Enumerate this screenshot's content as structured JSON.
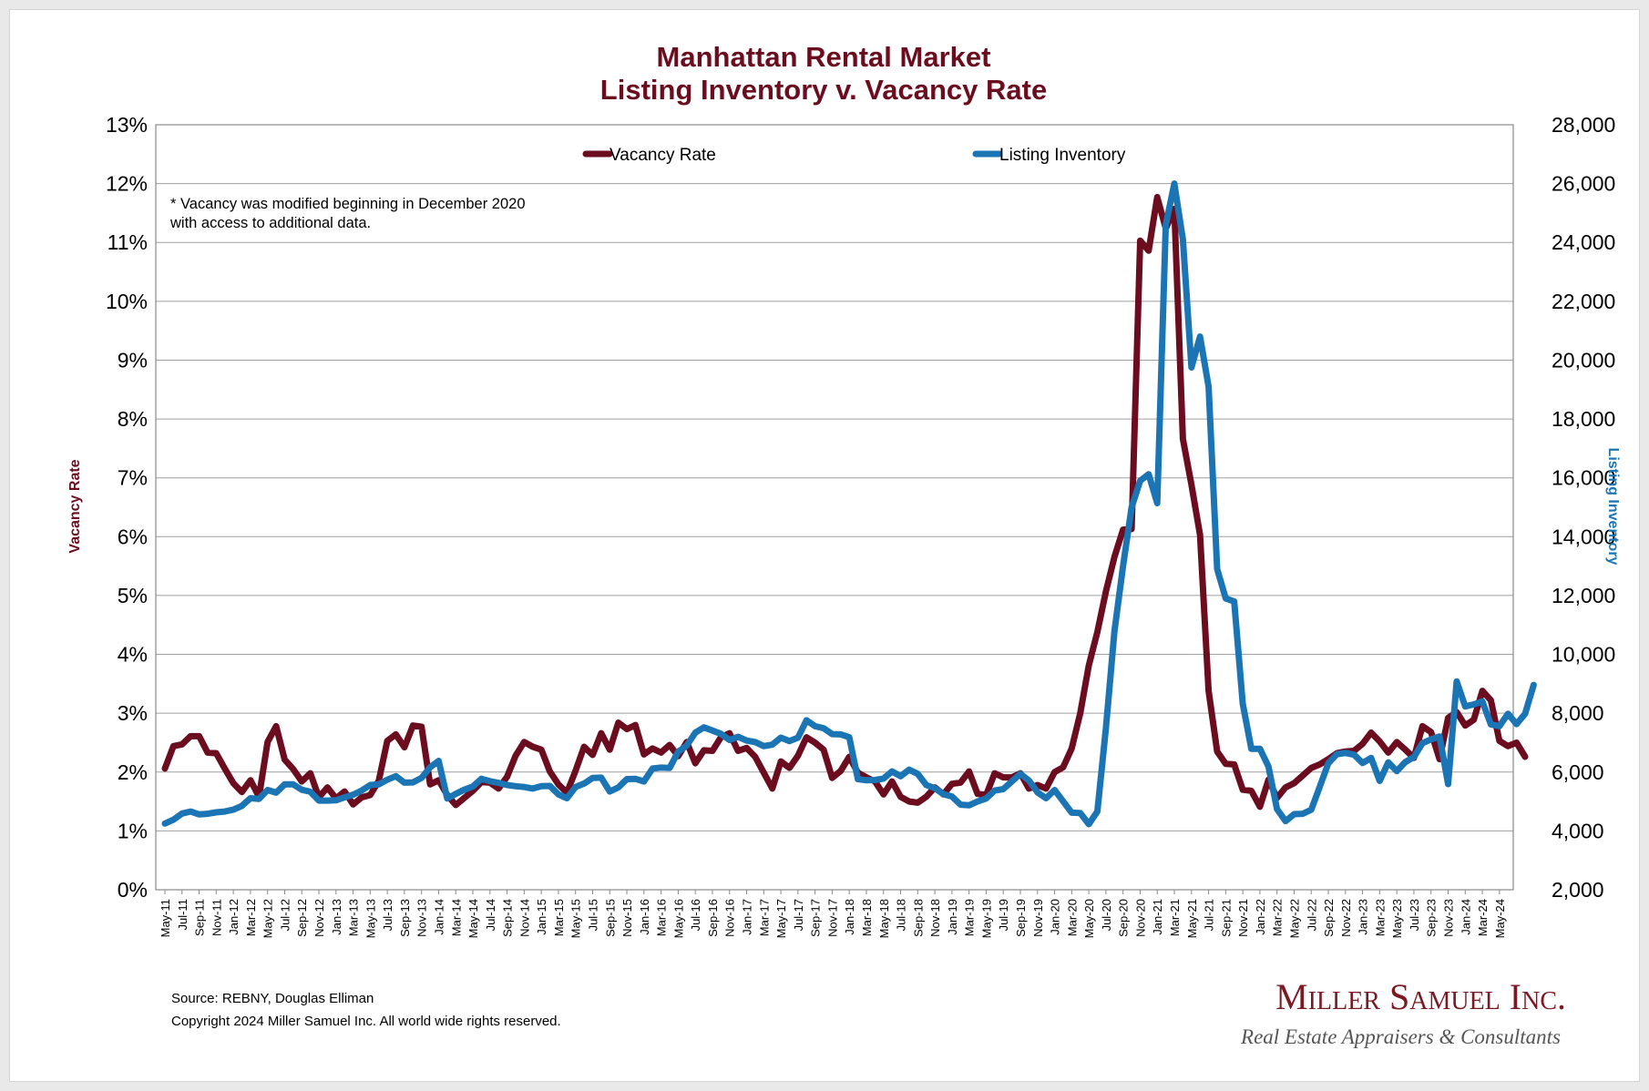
{
  "chart_data": {
    "type": "line",
    "title_lines": [
      "Manhattan Rental Market",
      "Listing Inventory v. Vacancy Rate"
    ],
    "y_left_label": "Vacancy Rate",
    "y_right_label": "Listing Inventory",
    "y_left_range": [
      0,
      13
    ],
    "y_left_ticks": [
      "0%",
      "1%",
      "2%",
      "3%",
      "4%",
      "5%",
      "6%",
      "7%",
      "8%",
      "9%",
      "10%",
      "11%",
      "12%",
      "13%"
    ],
    "y_right_range": [
      2000,
      28000
    ],
    "y_right_ticks": [
      "2,000",
      "4,000",
      "6,000",
      "8,000",
      "10,000",
      "12,000",
      "14,000",
      "16,000",
      "18,000",
      "20,000",
      "22,000",
      "24,000",
      "26,000",
      "28,000"
    ],
    "x_tick_labels": [
      "May-11",
      "Jul-11",
      "Sep-11",
      "Nov-11",
      "Jan-12",
      "Mar-12",
      "May-12",
      "Jul-12",
      "Sep-12",
      "Nov-12",
      "Jan-13",
      "Mar-13",
      "May-13",
      "Jul-13",
      "Sep-13",
      "Nov-13",
      "Jan-14",
      "Mar-14",
      "May-14",
      "Jul-14",
      "Sep-14",
      "Nov-14",
      "Jan-15",
      "Mar-15",
      "May-15",
      "Jul-15",
      "Sep-15",
      "Nov-15",
      "Jan-16",
      "Mar-16",
      "May-16",
      "Jul-16",
      "Sep-16",
      "Nov-16",
      "Jan-17",
      "Mar-17",
      "May-17",
      "Jul-17",
      "Sep-17",
      "Nov-17",
      "Jan-18",
      "Mar-18",
      "May-18",
      "Jul-18",
      "Sep-18",
      "Nov-18",
      "Jan-19",
      "Mar-19",
      "May-19",
      "Jul-19",
      "Sep-19",
      "Nov-19",
      "Jan-20",
      "Mar-20",
      "May-20",
      "Jul-20",
      "Sep-20",
      "Nov-20",
      "Jan-21",
      "Mar-21",
      "May-21",
      "Jul-21",
      "Sep-21",
      "Nov-21",
      "Jan-22",
      "Mar-22",
      "May-22",
      "Jul-22",
      "Sep-22",
      "Nov-22",
      "Jan-23",
      "Mar-23",
      "May-23",
      "Jul-23",
      "Sep-23",
      "Nov-23",
      "Jan-24",
      "Mar-24",
      "May-24"
    ],
    "legend_position": "top",
    "grid": true,
    "series": [
      {
        "name": "Vacancy Rate",
        "axis": "left",
        "color": "#6b0d1f",
        "unit": "%",
        "values": [
          2.06,
          2.44,
          2.47,
          2.61,
          2.61,
          2.33,
          2.32,
          2.06,
          1.81,
          1.66,
          1.86,
          1.58,
          2.51,
          2.78,
          2.21,
          2.05,
          1.84,
          1.98,
          1.57,
          1.74,
          1.55,
          1.67,
          1.45,
          1.57,
          1.61,
          1.85,
          2.53,
          2.64,
          2.42,
          2.79,
          2.77,
          1.79,
          1.86,
          1.61,
          1.44,
          1.56,
          1.68,
          1.83,
          1.82,
          1.72,
          1.92,
          2.28,
          2.51,
          2.43,
          2.38,
          2.01,
          1.79,
          1.65,
          2.02,
          2.43,
          2.29,
          2.66,
          2.38,
          2.84,
          2.73,
          2.8,
          2.3,
          2.4,
          2.33,
          2.46,
          2.27,
          2.51,
          2.15,
          2.37,
          2.36,
          2.59,
          2.66,
          2.36,
          2.41,
          2.26,
          1.99,
          1.72,
          2.18,
          2.07,
          2.28,
          2.59,
          2.5,
          2.38,
          1.9,
          2.02,
          2.26,
          1.99,
          1.91,
          1.84,
          1.62,
          1.84,
          1.58,
          1.5,
          1.48,
          1.58,
          1.74,
          1.62,
          1.8,
          1.82,
          2.01,
          1.63,
          1.61,
          1.98,
          1.91,
          1.91,
          1.98,
          1.72,
          1.78,
          1.72,
          2.0,
          2.08,
          2.4,
          3.0,
          3.81,
          4.38,
          5.07,
          5.66,
          6.12,
          6.13,
          11.03,
          10.86,
          11.77,
          11.24,
          11.57,
          7.66,
          6.88,
          6.03,
          3.38,
          2.35,
          2.14,
          2.13,
          1.7,
          1.68,
          1.41,
          1.87,
          1.56,
          1.74,
          1.81,
          1.94,
          2.07,
          2.13,
          2.22,
          2.32,
          2.35,
          2.36,
          2.48,
          2.67,
          2.52,
          2.33,
          2.51,
          2.38,
          2.24,
          2.78,
          2.68,
          2.22,
          2.92,
          3.02,
          2.79,
          2.89,
          3.38,
          3.22,
          2.53,
          2.44,
          2.5,
          2.26
        ]
      },
      {
        "name": "Listing Inventory",
        "axis": "right",
        "color": "#1b75b4",
        "unit": "",
        "values": [
          4250,
          4380,
          4590,
          4660,
          4560,
          4580,
          4630,
          4660,
          4720,
          4850,
          5110,
          5090,
          5390,
          5300,
          5580,
          5580,
          5400,
          5330,
          5030,
          5030,
          5040,
          5140,
          5230,
          5370,
          5560,
          5580,
          5740,
          5860,
          5640,
          5650,
          5800,
          6160,
          6380,
          5100,
          5260,
          5400,
          5510,
          5770,
          5690,
          5630,
          5560,
          5520,
          5490,
          5440,
          5520,
          5530,
          5240,
          5110,
          5490,
          5610,
          5800,
          5810,
          5340,
          5480,
          5760,
          5770,
          5680,
          6120,
          6150,
          6140,
          6690,
          6900,
          7340,
          7520,
          7410,
          7300,
          7090,
          7200,
          7070,
          7020,
          6880,
          6930,
          7170,
          7050,
          7170,
          7760,
          7560,
          7490,
          7290,
          7280,
          7180,
          5760,
          5720,
          5730,
          5780,
          6020,
          5860,
          6080,
          5940,
          5560,
          5450,
          5250,
          5170,
          4890,
          4870,
          5000,
          5100,
          5370,
          5420,
          5680,
          5940,
          5710,
          5310,
          5110,
          5390,
          5010,
          4620,
          4610,
          4230,
          4660,
          7500,
          10800,
          13000,
          15000,
          15900,
          16120,
          15140,
          24600,
          26000,
          24100,
          19750,
          20800,
          19100,
          12900,
          11900,
          11800,
          8320,
          6790,
          6790,
          6190,
          4740,
          4330,
          4570,
          4580,
          4720,
          5500,
          6300,
          6610,
          6650,
          6590,
          6310,
          6480,
          5700,
          6330,
          6030,
          6340,
          6510,
          6980,
          7110,
          7210,
          5590,
          9080,
          8230,
          8300,
          8400,
          7620,
          7560,
          7980,
          7630,
          7980,
          8960
        ]
      }
    ]
  },
  "notes": [
    "* Vacancy was modified beginning in December 2020",
    "with access to additional data."
  ],
  "footer": {
    "source": "Source: REBNY, Douglas Elliman",
    "copyright": "Copyright 2024 Miller Samuel Inc.  All world wide rights reserved."
  },
  "brand": {
    "name_line": "Miller Samuel Inc.",
    "tagline": "Real Estate Appraisers & Consultants",
    "color": "#7a1a24"
  }
}
